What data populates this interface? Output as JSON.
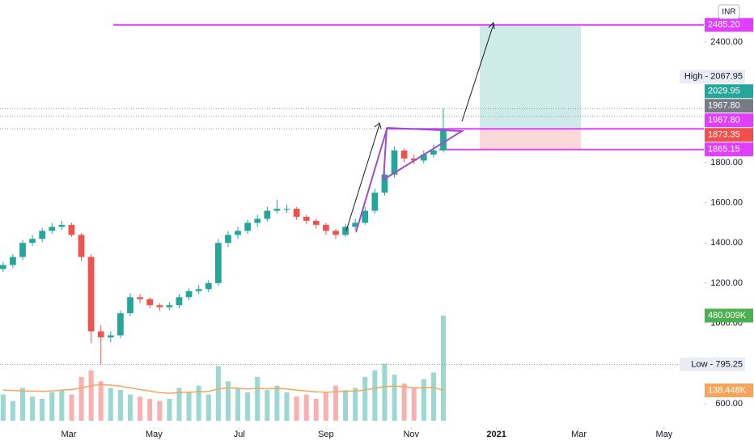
{
  "chart_data": {
    "type": "candlestick",
    "currency": "INR",
    "x": [
      13,
      20,
      27,
      34,
      41,
      48,
      55,
      62,
      69,
      76,
      83,
      90,
      97,
      104,
      111,
      118,
      125,
      132,
      139,
      146,
      153,
      160,
      167,
      174,
      181,
      188,
      195,
      202,
      209,
      216,
      223,
      230,
      237,
      244,
      251,
      258,
      265,
      272,
      279,
      286,
      293,
      300,
      307,
      314,
      321,
      328
    ],
    "xlim": [
      10.8,
      514.4
    ],
    "xticks": [
      {
        "value": 60,
        "label": "Mar"
      },
      {
        "value": 121,
        "label": "May"
      },
      {
        "value": 182,
        "label": "Jul"
      },
      {
        "value": 244,
        "label": "Sep"
      },
      {
        "value": 305,
        "label": "Nov"
      },
      {
        "value": 366,
        "label": "2021"
      },
      {
        "value": 425,
        "label": "Mar"
      },
      {
        "value": 486,
        "label": "May"
      }
    ],
    "ylim": [
      515,
      2609
    ],
    "yticks": [
      {
        "value": 2400,
        "label": "2400.00"
      },
      {
        "value": 1800,
        "label": "1800.00"
      },
      {
        "value": 1600,
        "label": "1600.00"
      },
      {
        "value": 1400,
        "label": "1400.00"
      },
      {
        "value": 1200,
        "label": "1200.00"
      },
      {
        "value": 1000,
        "label": "1000.00"
      },
      {
        "value": 600,
        "label": "600.00"
      }
    ],
    "open": [
      1270,
      1290,
      1330,
      1400,
      1420,
      1460,
      1480,
      1490,
      1440,
      1330,
      960,
      930,
      940,
      1050,
      1130,
      1120,
      1090,
      1080,
      1090,
      1130,
      1160,
      1170,
      1200,
      1400,
      1440,
      1460,
      1500,
      1520,
      1560,
      1570,
      1570,
      1530,
      1510,
      1490,
      1460,
      1440,
      1480,
      1500,
      1560,
      1650,
      1740,
      1860,
      1820,
      1810,
      1840,
      1860
    ],
    "high": [
      1305,
      1345,
      1415,
      1440,
      1475,
      1500,
      1510,
      1500,
      1450,
      1345,
      990,
      960,
      1065,
      1150,
      1145,
      1130,
      1100,
      1105,
      1145,
      1175,
      1190,
      1215,
      1420,
      1460,
      1480,
      1515,
      1540,
      1580,
      1615,
      1590,
      1580,
      1540,
      1520,
      1500,
      1470,
      1495,
      1520,
      1580,
      1670,
      1760,
      1880,
      1870,
      1840,
      1860,
      1890,
      2067.95
    ],
    "low": [
      1255,
      1275,
      1315,
      1385,
      1405,
      1445,
      1465,
      1430,
      1310,
      900,
      795.25,
      905,
      925,
      1035,
      1100,
      1075,
      1060,
      1065,
      1075,
      1115,
      1145,
      1155,
      1185,
      1380,
      1420,
      1445,
      1480,
      1505,
      1545,
      1550,
      1515,
      1495,
      1470,
      1440,
      1420,
      1430,
      1465,
      1490,
      1545,
      1635,
      1725,
      1800,
      1790,
      1795,
      1825,
      1850
    ],
    "close": [
      1290,
      1330,
      1400,
      1420,
      1460,
      1480,
      1490,
      1440,
      1330,
      960,
      930,
      940,
      1050,
      1130,
      1120,
      1090,
      1080,
      1090,
      1130,
      1160,
      1170,
      1200,
      1400,
      1440,
      1460,
      1500,
      1520,
      1560,
      1570,
      1570,
      1530,
      1510,
      1490,
      1460,
      1440,
      1480,
      1500,
      1560,
      1650,
      1740,
      1860,
      1820,
      1810,
      1840,
      1860,
      1967.8
    ],
    "up_color": "#26a69a",
    "down_color": "#ef5350",
    "volume": {
      "values": [
        120,
        90,
        150,
        110,
        100,
        130,
        140,
        120,
        200,
        230,
        180,
        150,
        140,
        120,
        110,
        100,
        90,
        100,
        150,
        130,
        160,
        120,
        250,
        180,
        150,
        130,
        200,
        140,
        160,
        130,
        110,
        120,
        100,
        130,
        160,
        140,
        150,
        200,
        230,
        260,
        210,
        170,
        150,
        190,
        220,
        480.009
      ],
      "ma": [
        140,
        138,
        136,
        135,
        134,
        136,
        140,
        142,
        150,
        160,
        165,
        162,
        158,
        150,
        142,
        135,
        128,
        125,
        128,
        130,
        132,
        134,
        145,
        150,
        148,
        145,
        148,
        146,
        148,
        145,
        140,
        136,
        132,
        130,
        132,
        134,
        136,
        140,
        148,
        155,
        158,
        155,
        150,
        150,
        152,
        138.448
      ],
      "ma_color": "#f5a55c",
      "ylim": [
        0,
        1920
      ],
      "tags": [
        {
          "value": 480.009,
          "label": "480.009K",
          "color": "#4caf50"
        },
        {
          "value": 138.448,
          "label": "138.448K",
          "color": "#f5a55c"
        }
      ]
    },
    "price_tags": [
      {
        "value": 2485.2,
        "label": "2485.20",
        "color": "#e040fb",
        "text_color": "#ffffff"
      },
      {
        "value": 2067.95,
        "label": "High - 2067.95",
        "color": "#e9ecf2",
        "text_color": "#131722"
      },
      {
        "value": 2029.95,
        "label": "2029.95",
        "color": "#26a69a",
        "text_color": "#ffffff"
      },
      {
        "value": 1967.8,
        "label": "1967.80",
        "color": "#e040fb",
        "text_color": "#ffffff"
      },
      {
        "value": 1967.8,
        "label": "1967.80",
        "color": "#787b86",
        "text_color": "#ffffff"
      },
      {
        "value": 1873.35,
        "label": "1873.35",
        "color": "#f0504c",
        "text_color": "#ffffff"
      },
      {
        "value": 1865.15,
        "label": "1865.15",
        "color": "#e040fb",
        "text_color": "#ffffff"
      },
      {
        "value": 795.25,
        "label": "Low - 795.25",
        "color": "#e9ecf2",
        "text_color": "#131722"
      }
    ]
  }
}
